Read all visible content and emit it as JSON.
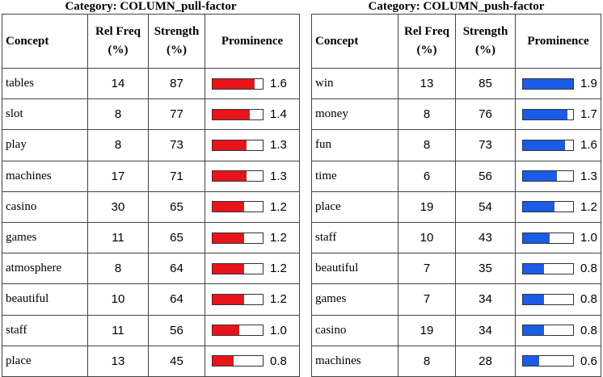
{
  "tables": [
    {
      "title": "Category: COLUMN_pull-factor",
      "bar_color": "#e8141a",
      "columns": [
        "Concept",
        "Rel Freq (%)",
        "Strength (%)",
        "Prominence"
      ],
      "rows": [
        {
          "concept": "tables",
          "rel_freq": 14,
          "strength": 87,
          "prominence": 1.6
        },
        {
          "concept": "slot",
          "rel_freq": 8,
          "strength": 77,
          "prominence": 1.4
        },
        {
          "concept": "play",
          "rel_freq": 8,
          "strength": 73,
          "prominence": 1.3
        },
        {
          "concept": "machines",
          "rel_freq": 17,
          "strength": 71,
          "prominence": 1.3
        },
        {
          "concept": "casino",
          "rel_freq": 30,
          "strength": 65,
          "prominence": 1.2
        },
        {
          "concept": "games",
          "rel_freq": 11,
          "strength": 65,
          "prominence": 1.2
        },
        {
          "concept": "atmosphere",
          "rel_freq": 8,
          "strength": 64,
          "prominence": 1.2
        },
        {
          "concept": "beautiful",
          "rel_freq": 10,
          "strength": 64,
          "prominence": 1.2
        },
        {
          "concept": "staff",
          "rel_freq": 11,
          "strength": 56,
          "prominence": {
            "value": 1.0,
            "label": "1.0"
          }
        },
        {
          "concept": "place",
          "rel_freq": 13,
          "strength": 45,
          "prominence": 0.8
        }
      ]
    },
    {
      "title": "Category: COLUMN_push-factor",
      "bar_color": "#1a5ce6",
      "columns": [
        "Concept",
        "Rel Freq (%)",
        "Strength (%)",
        "Prominence"
      ],
      "rows": [
        {
          "concept": "win",
          "rel_freq": 13,
          "strength": 85,
          "prominence": 1.9
        },
        {
          "concept": "money",
          "rel_freq": 8,
          "strength": 76,
          "prominence": 1.7
        },
        {
          "concept": "fun",
          "rel_freq": 8,
          "strength": 73,
          "prominence": 1.6
        },
        {
          "concept": "time",
          "rel_freq": 6,
          "strength": 56,
          "prominence": 1.3
        },
        {
          "concept": "place",
          "rel_freq": 19,
          "strength": 54,
          "prominence": 1.2
        },
        {
          "concept": "staff",
          "rel_freq": 10,
          "strength": 43,
          "prominence": {
            "value": 1.0,
            "label": "1.0"
          }
        },
        {
          "concept": "beautiful",
          "rel_freq": 7,
          "strength": 35,
          "prominence": 0.8
        },
        {
          "concept": "games",
          "rel_freq": 7,
          "strength": 34,
          "prominence": 0.8
        },
        {
          "concept": "casino",
          "rel_freq": 19,
          "strength": 34,
          "prominence": 0.8
        },
        {
          "concept": "machines",
          "rel_freq": 8,
          "strength": 28,
          "prominence": 0.6
        }
      ]
    }
  ]
}
